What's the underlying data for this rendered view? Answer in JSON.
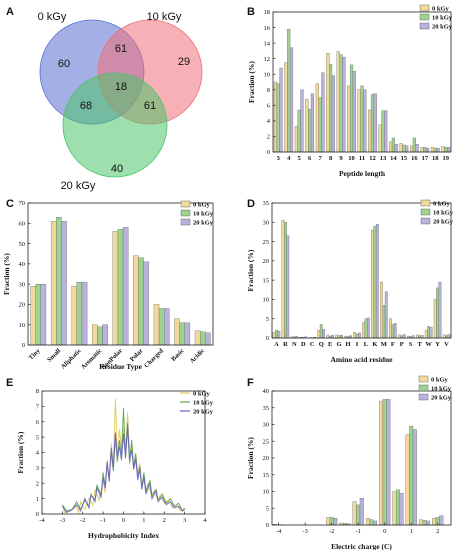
{
  "panels": {
    "A": "A",
    "B": "B",
    "C": "C",
    "D": "D",
    "E": "E",
    "F": "F"
  },
  "series_colors": [
    "#f2d89a",
    "#9ed38f",
    "#b9b2dc"
  ],
  "line_colors": [
    "#e3c55c",
    "#5aa548",
    "#6a5fc8"
  ],
  "chart_data": [
    {
      "id": "A",
      "type": "venn",
      "sets": [
        "0 kGy",
        "10 kGy",
        "20 kGy"
      ],
      "regions": {
        "only_0": "60",
        "only_10": "29",
        "only_20": "40",
        "0_10": "61",
        "0_20": "68",
        "10_20": "61",
        "all": "18"
      },
      "colors": [
        "#5a6fd0",
        "#f0707a",
        "#4cc46a"
      ]
    },
    {
      "id": "B",
      "type": "bar",
      "xlabel": "Peptide length",
      "ylabel": "Fraction (%)",
      "ylim": [
        0,
        18
      ],
      "yticks": [
        "0",
        "2",
        "4",
        "6",
        "8",
        "10",
        "12",
        "14",
        "16",
        "18"
      ],
      "categories": [
        "3",
        "4",
        "5",
        "6",
        "7",
        "8",
        "9",
        "10",
        "11",
        "12",
        "13",
        "14",
        "15",
        "16",
        "17",
        "18",
        "19"
      ],
      "series": [
        {
          "name": "0 kGy",
          "values": [
            9.0,
            11.5,
            3.3,
            6.8,
            8.8,
            12.7,
            12.9,
            8.5,
            8.0,
            5.4,
            3.5,
            1.3,
            1.1,
            0.8,
            0.6,
            0.6,
            0.7
          ]
        },
        {
          "name": "10 kGy",
          "values": [
            8.8,
            15.8,
            5.4,
            5.5,
            7.0,
            11.3,
            12.5,
            11.2,
            8.5,
            7.4,
            5.3,
            1.8,
            0.9,
            1.8,
            0.6,
            0.5,
            0.6
          ]
        },
        {
          "name": "20 kGy",
          "values": [
            10.8,
            13.4,
            8.0,
            7.5,
            10.2,
            9.8,
            12.2,
            10.4,
            8.0,
            7.5,
            5.3,
            1.0,
            0.8,
            1.0,
            0.5,
            0.5,
            0.6
          ]
        }
      ]
    },
    {
      "id": "C",
      "type": "bar",
      "xlabel": "Residue Type",
      "ylabel": "Fraction (%)",
      "ylim": [
        0,
        70
      ],
      "yticks": [
        "0",
        "10",
        "20",
        "30",
        "40",
        "50",
        "60",
        "70"
      ],
      "categories": [
        "Tiny",
        "Small",
        "Aliphatic",
        "Aromatic",
        "NonPolar",
        "Polar",
        "Charged",
        "Basic",
        "Acidic"
      ],
      "series": [
        {
          "name": "0 kGy",
          "values": [
            29,
            61,
            29,
            10,
            56,
            44,
            20,
            13,
            7
          ]
        },
        {
          "name": "10 kGy",
          "values": [
            30,
            63,
            31,
            9,
            57,
            43,
            18,
            11,
            6.5
          ]
        },
        {
          "name": "20 kGy",
          "values": [
            30,
            61,
            31,
            10,
            58,
            41,
            18,
            11,
            6
          ]
        }
      ]
    },
    {
      "id": "D",
      "type": "bar",
      "xlabel": "Amino acid residue",
      "ylabel": "Fraction (%)",
      "ylim": [
        0,
        35
      ],
      "yticks": [
        "0",
        "5",
        "10",
        "15",
        "20",
        "25",
        "30",
        "35"
      ],
      "categories": [
        "A",
        "R",
        "N",
        "D",
        "C",
        "Q",
        "E",
        "G",
        "H",
        "I",
        "L",
        "K",
        "M",
        "F",
        "P",
        "S",
        "T",
        "W",
        "Y",
        "V"
      ],
      "series": [
        {
          "name": "0 kGy",
          "values": [
            1.5,
            30.5,
            0.3,
            0.2,
            0.1,
            2.0,
            0.8,
            0.8,
            0.5,
            1.5,
            4.0,
            28.0,
            14.5,
            5.0,
            0.8,
            0.5,
            0.8,
            2.0,
            10.0,
            0.8
          ]
        },
        {
          "name": "10 kGy",
          "values": [
            2.0,
            30.0,
            0.3,
            0.2,
            0.1,
            3.5,
            0.5,
            0.6,
            0.4,
            1.0,
            5.0,
            29.0,
            8.5,
            3.5,
            0.6,
            0.4,
            0.6,
            3.0,
            13.0,
            0.6
          ]
        },
        {
          "name": "20 kGy",
          "values": [
            1.8,
            26.5,
            0.4,
            0.3,
            0.2,
            2.2,
            0.7,
            0.7,
            0.6,
            1.3,
            5.2,
            29.5,
            12.0,
            3.8,
            0.9,
            0.6,
            0.7,
            2.8,
            14.5,
            0.9
          ]
        }
      ]
    },
    {
      "id": "E",
      "type": "line",
      "xlabel": "Hydrophobicity Index",
      "ylabel": "Fraction (%)",
      "xlim": [
        -4,
        4
      ],
      "ylim": [
        0,
        8
      ],
      "xticks": [
        "-4",
        "-3",
        "-2",
        "-1",
        "0",
        "1",
        "2",
        "3",
        "4"
      ],
      "yticks": [
        "0",
        "1",
        "2",
        "3",
        "4",
        "5",
        "6",
        "7",
        "8"
      ],
      "series": [
        {
          "name": "0 kGy",
          "points": [
            [
              -3.0,
              0.6
            ],
            [
              -2.9,
              0.1
            ],
            [
              -2.6,
              0.2
            ],
            [
              -2.4,
              0.6
            ],
            [
              -2.2,
              0.1
            ],
            [
              -2.1,
              0.8
            ],
            [
              -1.9,
              0.3
            ],
            [
              -1.7,
              1.0
            ],
            [
              -1.5,
              0.6
            ],
            [
              -1.4,
              1.6
            ],
            [
              -1.2,
              0.9
            ],
            [
              -1.0,
              2.2
            ],
            [
              -0.9,
              1.4
            ],
            [
              -0.8,
              3.5
            ],
            [
              -0.7,
              2.2
            ],
            [
              -0.6,
              4.6
            ],
            [
              -0.5,
              3.0
            ],
            [
              -0.4,
              7.5
            ],
            [
              -0.3,
              3.5
            ],
            [
              -0.2,
              5.5
            ],
            [
              -0.1,
              4.3
            ],
            [
              0.0,
              5.6
            ],
            [
              0.1,
              4.0
            ],
            [
              0.2,
              6.6
            ],
            [
              0.3,
              3.8
            ],
            [
              0.4,
              4.6
            ],
            [
              0.5,
              3.0
            ],
            [
              0.6,
              4.0
            ],
            [
              0.7,
              2.5
            ],
            [
              0.8,
              3.3
            ],
            [
              0.9,
              1.8
            ],
            [
              1.0,
              2.6
            ],
            [
              1.1,
              1.4
            ],
            [
              1.2,
              2.0
            ],
            [
              1.4,
              1.1
            ],
            [
              1.5,
              1.5
            ],
            [
              1.7,
              0.9
            ],
            [
              1.8,
              1.2
            ],
            [
              2.0,
              0.7
            ],
            [
              2.2,
              0.9
            ],
            [
              2.4,
              0.4
            ],
            [
              2.6,
              0.6
            ],
            [
              2.8,
              0.2
            ],
            [
              3.0,
              0.3
            ]
          ]
        },
        {
          "name": "10 kGy",
          "points": [
            [
              -3.0,
              0.6
            ],
            [
              -2.8,
              0.2
            ],
            [
              -2.5,
              0.3
            ],
            [
              -2.3,
              0.8
            ],
            [
              -2.1,
              0.3
            ],
            [
              -1.9,
              0.9
            ],
            [
              -1.7,
              0.5
            ],
            [
              -1.6,
              1.3
            ],
            [
              -1.4,
              0.8
            ],
            [
              -1.3,
              1.9
            ],
            [
              -1.1,
              1.2
            ],
            [
              -1.0,
              2.7
            ],
            [
              -0.9,
              1.8
            ],
            [
              -0.8,
              3.2
            ],
            [
              -0.7,
              2.3
            ],
            [
              -0.6,
              4.0
            ],
            [
              -0.5,
              2.8
            ],
            [
              -0.4,
              5.0
            ],
            [
              -0.3,
              3.4
            ],
            [
              -0.2,
              4.8
            ],
            [
              -0.1,
              3.8
            ],
            [
              0.0,
              6.9
            ],
            [
              0.1,
              3.6
            ],
            [
              0.2,
              5.6
            ],
            [
              0.3,
              3.3
            ],
            [
              0.4,
              4.8
            ],
            [
              0.5,
              3.0
            ],
            [
              0.6,
              3.9
            ],
            [
              0.7,
              2.4
            ],
            [
              0.8,
              3.1
            ],
            [
              0.9,
              1.7
            ],
            [
              1.0,
              2.7
            ],
            [
              1.1,
              1.5
            ],
            [
              1.3,
              2.2
            ],
            [
              1.4,
              1.2
            ],
            [
              1.6,
              1.6
            ],
            [
              1.7,
              0.9
            ],
            [
              1.9,
              1.3
            ],
            [
              2.1,
              0.7
            ],
            [
              2.3,
              1.0
            ],
            [
              2.5,
              0.5
            ],
            [
              2.7,
              0.7
            ],
            [
              2.9,
              0.2
            ],
            [
              3.0,
              0.4
            ]
          ]
        },
        {
          "name": "20 kGy",
          "points": [
            [
              -3.0,
              0.5
            ],
            [
              -2.8,
              0.1
            ],
            [
              -2.5,
              0.3
            ],
            [
              -2.3,
              0.6
            ],
            [
              -2.1,
              0.2
            ],
            [
              -1.9,
              1.0
            ],
            [
              -1.7,
              0.4
            ],
            [
              -1.6,
              1.2
            ],
            [
              -1.4,
              0.9
            ],
            [
              -1.3,
              1.7
            ],
            [
              -1.1,
              1.1
            ],
            [
              -1.0,
              2.4
            ],
            [
              -0.9,
              1.7
            ],
            [
              -0.8,
              3.4
            ],
            [
              -0.7,
              2.1
            ],
            [
              -0.6,
              4.3
            ],
            [
              -0.5,
              3.0
            ],
            [
              -0.4,
              5.3
            ],
            [
              -0.3,
              3.7
            ],
            [
              -0.2,
              4.4
            ],
            [
              -0.1,
              3.5
            ],
            [
              0.0,
              5.2
            ],
            [
              0.1,
              3.7
            ],
            [
              0.2,
              5.9
            ],
            [
              0.3,
              3.5
            ],
            [
              0.4,
              4.2
            ],
            [
              0.5,
              2.9
            ],
            [
              0.6,
              3.6
            ],
            [
              0.7,
              2.2
            ],
            [
              0.8,
              3.0
            ],
            [
              0.9,
              1.6
            ],
            [
              1.0,
              2.4
            ],
            [
              1.1,
              1.3
            ],
            [
              1.3,
              2.0
            ],
            [
              1.4,
              1.0
            ],
            [
              1.6,
              1.5
            ],
            [
              1.7,
              0.8
            ],
            [
              1.9,
              1.1
            ],
            [
              2.1,
              0.6
            ],
            [
              2.3,
              0.8
            ],
            [
              2.5,
              0.4
            ],
            [
              2.7,
              0.5
            ],
            [
              2.9,
              0.2
            ],
            [
              3.0,
              0.3
            ]
          ]
        }
      ]
    },
    {
      "id": "F",
      "type": "bar",
      "xlabel": "Electric charge (C)",
      "ylabel": "Fraction (%)",
      "xlim": [
        -4.25,
        2.5
      ],
      "ylim": [
        0,
        40
      ],
      "xticks": [
        "-4",
        "-3",
        "-2",
        "-1",
        "0",
        "1",
        "2"
      ],
      "yticks": [
        "0",
        "5",
        "10",
        "15",
        "20",
        "25",
        "30",
        "35",
        "40"
      ],
      "groups": [
        {
          "x": -4,
          "values": [
            0.2,
            0.1,
            0.1
          ]
        },
        {
          "x": -2,
          "values": [
            2.2,
            2.3,
            2.0
          ]
        },
        {
          "x": -1.5,
          "values": [
            0.6,
            0.5,
            0.4
          ]
        },
        {
          "x": -1,
          "values": [
            7.0,
            6.0,
            8.0
          ]
        },
        {
          "x": -0.5,
          "values": [
            2.0,
            1.6,
            1.2
          ]
        },
        {
          "x": 0,
          "values": [
            37.0,
            37.5,
            37.5
          ]
        },
        {
          "x": 0.5,
          "values": [
            10.0,
            10.5,
            9.5
          ]
        },
        {
          "x": 1,
          "values": [
            27.0,
            29.5,
            28.5
          ]
        },
        {
          "x": 1.5,
          "values": [
            1.6,
            1.4,
            1.2
          ]
        },
        {
          "x": 2,
          "values": [
            2.0,
            2.3,
            2.8
          ]
        }
      ],
      "series_names": [
        "0 kGy",
        "10 kGy",
        "20 kGy"
      ]
    }
  ]
}
